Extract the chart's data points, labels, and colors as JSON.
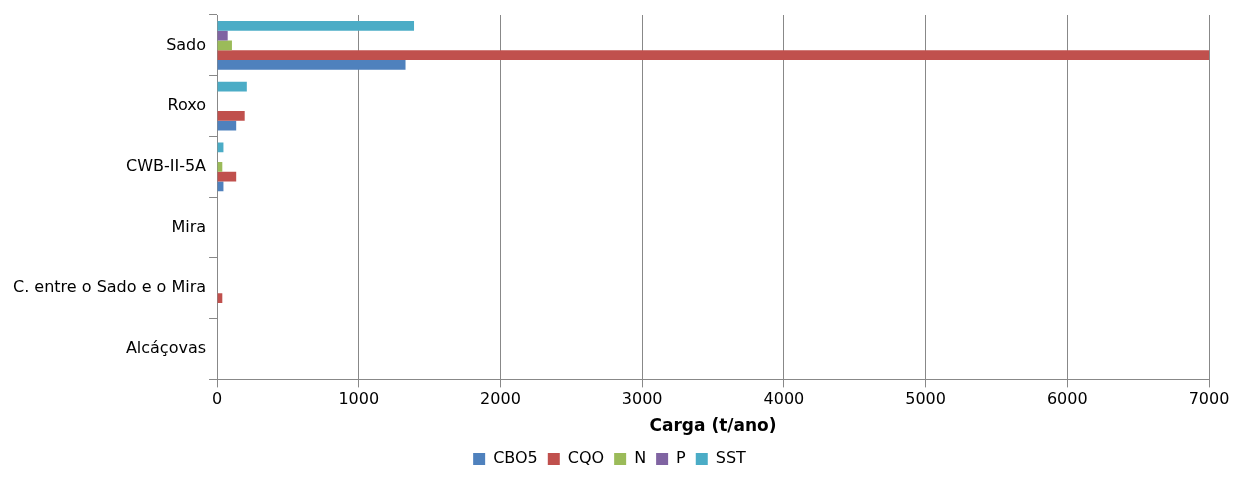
{
  "chart_data": {
    "type": "bar",
    "orientation": "horizontal",
    "xlabel": "Carga (t/ano)",
    "categories": [
      "Sado",
      "Roxo",
      "CWB-II-5A",
      "Mira",
      "C. entre o Sado e o Mira",
      "Alcáçovas"
    ],
    "series": [
      {
        "name": "CBO5",
        "color": "#4f81bd",
        "values": [
          1330,
          135,
          45,
          0,
          0,
          0
        ]
      },
      {
        "name": "CQO",
        "color": "#c0504d",
        "values": [
          7000,
          195,
          135,
          0,
          37,
          0
        ]
      },
      {
        "name": "N",
        "color": "#9bbb59",
        "values": [
          105,
          0,
          37,
          0,
          0,
          0
        ]
      },
      {
        "name": "P",
        "color": "#8064a2",
        "values": [
          75,
          0,
          0,
          0,
          0,
          0
        ]
      },
      {
        "name": "SST",
        "color": "#4bacc6",
        "values": [
          1390,
          210,
          45,
          0,
          0,
          0
        ]
      }
    ],
    "xlim": [
      0,
      7000
    ],
    "xticks": [
      0,
      1000,
      2000,
      3000,
      4000,
      5000,
      6000,
      7000
    ],
    "grid": "x",
    "legend": "bottom"
  }
}
